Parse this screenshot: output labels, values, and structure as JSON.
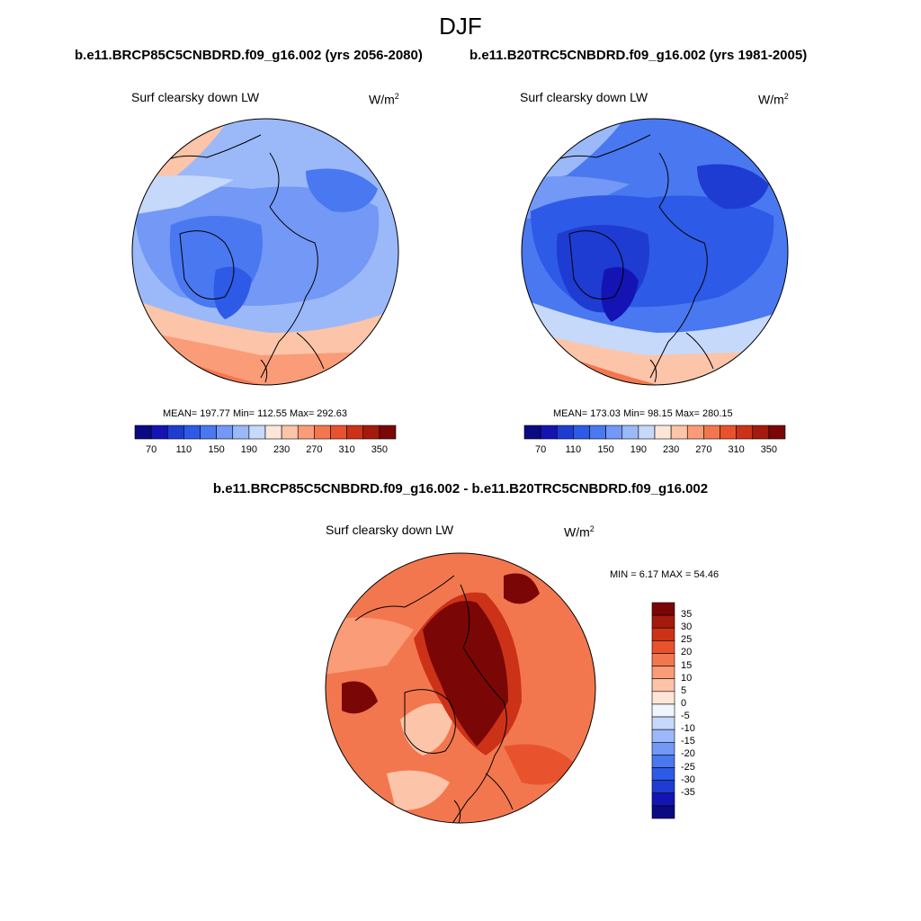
{
  "figure": {
    "season": "DJF",
    "left_run": "b.e11.BRCP85C5CNBDRD.f09_g16.002 (yrs 2056-2080)",
    "right_run": "b.e11.B20TRC5CNBDRD.f09_g16.002 (yrs 1981-2005)",
    "diff_title": "b.e11.BRCP85C5CNBDRD.f09_g16.002 - b.e11.B20TRC5CNBDRD.f09_g16.002"
  },
  "panel_left": {
    "variable": "Surf clearsky down LW",
    "units": "W/m",
    "units_sup": "2",
    "stats": "MEAN= 197.77  Min= 112.55  Max= 292.63"
  },
  "panel_right": {
    "variable": "Surf clearsky down LW",
    "units": "W/m",
    "units_sup": "2",
    "stats": "MEAN= 173.03  Min= 98.15  Max= 280.15"
  },
  "panel_diff": {
    "variable": "Surf clearsky down LW",
    "units": "W/m",
    "units_sup": "2",
    "stats": "MIN =   6.17 MAX =  54.46"
  },
  "colorbar_abs": {
    "colors": [
      "#0a0a82",
      "#1414b4",
      "#1e3cd2",
      "#2d5ae6",
      "#4a78f0",
      "#7398f5",
      "#9bb9f8",
      "#c6d9fa",
      "#fde6d8",
      "#fcc4a8",
      "#fa9c78",
      "#f2774f",
      "#e8532d",
      "#cc3217",
      "#a41a0c",
      "#7a0606"
    ],
    "labels": [
      "70",
      "110",
      "150",
      "190",
      "230",
      "270",
      "310",
      "350"
    ]
  },
  "colorbar_diff": {
    "colors": [
      "#7a0606",
      "#a41a0c",
      "#cc3217",
      "#e8532d",
      "#f2774f",
      "#fa9c78",
      "#fcc4a8",
      "#fde6d8",
      "#f0f6ff",
      "#c6d9fa",
      "#9bb9f8",
      "#7398f5",
      "#4a78f0",
      "#2d5ae6",
      "#1e3cd2",
      "#1414b4",
      "#0a0a82"
    ],
    "labels": [
      "35",
      "30",
      "25",
      "20",
      "15",
      "10",
      "5",
      "0",
      "-5",
      "-10",
      "-15",
      "-20",
      "-25",
      "-30",
      "-35"
    ]
  },
  "map_colors": {
    "abs_left": [
      "#e8532d",
      "#f2774f",
      "#fa9c78",
      "#fcc4a8",
      "#c6d9fa",
      "#9bb9f8",
      "#7398f5",
      "#4a78f0",
      "#2d5ae6",
      "#1e3cd2"
    ],
    "abs_right": [
      "#cc3217",
      "#f2774f",
      "#fcc4a8",
      "#9bb9f8",
      "#7398f5",
      "#4a78f0",
      "#2d5ae6",
      "#1e3cd2",
      "#1414b4"
    ],
    "diff": [
      "#f2774f",
      "#fa9c78",
      "#fcc4a8",
      "#e8532d",
      "#cc3217",
      "#a41a0c",
      "#7a0606"
    ]
  }
}
